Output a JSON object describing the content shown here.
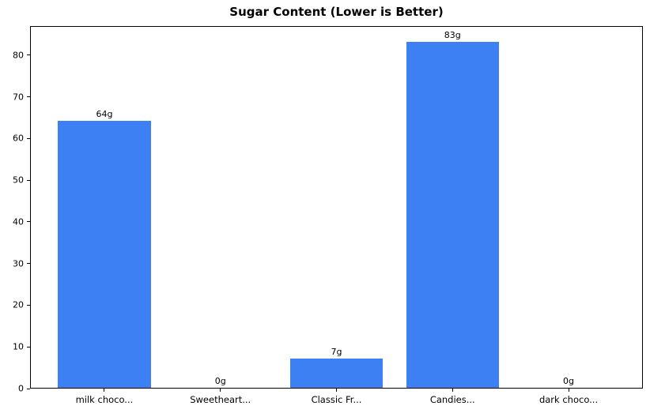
{
  "chart_data": {
    "type": "bar",
    "title": "Sugar Content (Lower is Better)",
    "categories": [
      "milk choco...",
      "Sweetheart...",
      "Classic Fr...",
      "Candies...",
      "dark choco..."
    ],
    "values": [
      64,
      0,
      7,
      83,
      0
    ],
    "bar_labels": [
      "64g",
      "0g",
      "7g",
      "83g",
      "0g"
    ],
    "xlabel": "",
    "ylabel": "",
    "yticks": [
      0,
      10,
      20,
      30,
      40,
      50,
      60,
      70,
      80
    ],
    "ylim": [
      0,
      87
    ],
    "xlim": [
      -0.64,
      4.64
    ],
    "bar_width": 0.8,
    "bar_color": "#3c80f4",
    "axis_color": "#000000",
    "text_color": "#000000",
    "background_color": "#ffffff",
    "grid": false,
    "legend": null
  }
}
